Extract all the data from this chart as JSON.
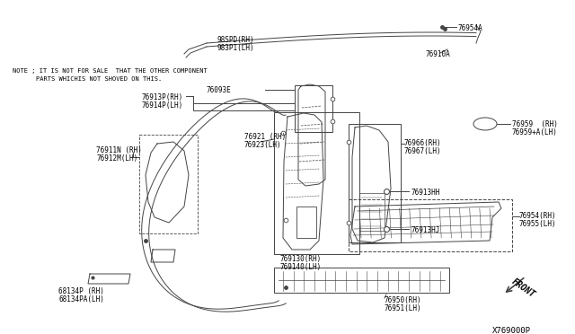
{
  "bg_color": "#ffffff",
  "diagram_id": "X769000P",
  "note_line1": "NOTE ; IT IS NOT FOR SALE  THAT THE OTHER COMPONENT",
  "note_line2": "PARTS WHICHIS NOT SHOVED ON THIS.",
  "lc": "#444444",
  "lw": 0.7
}
